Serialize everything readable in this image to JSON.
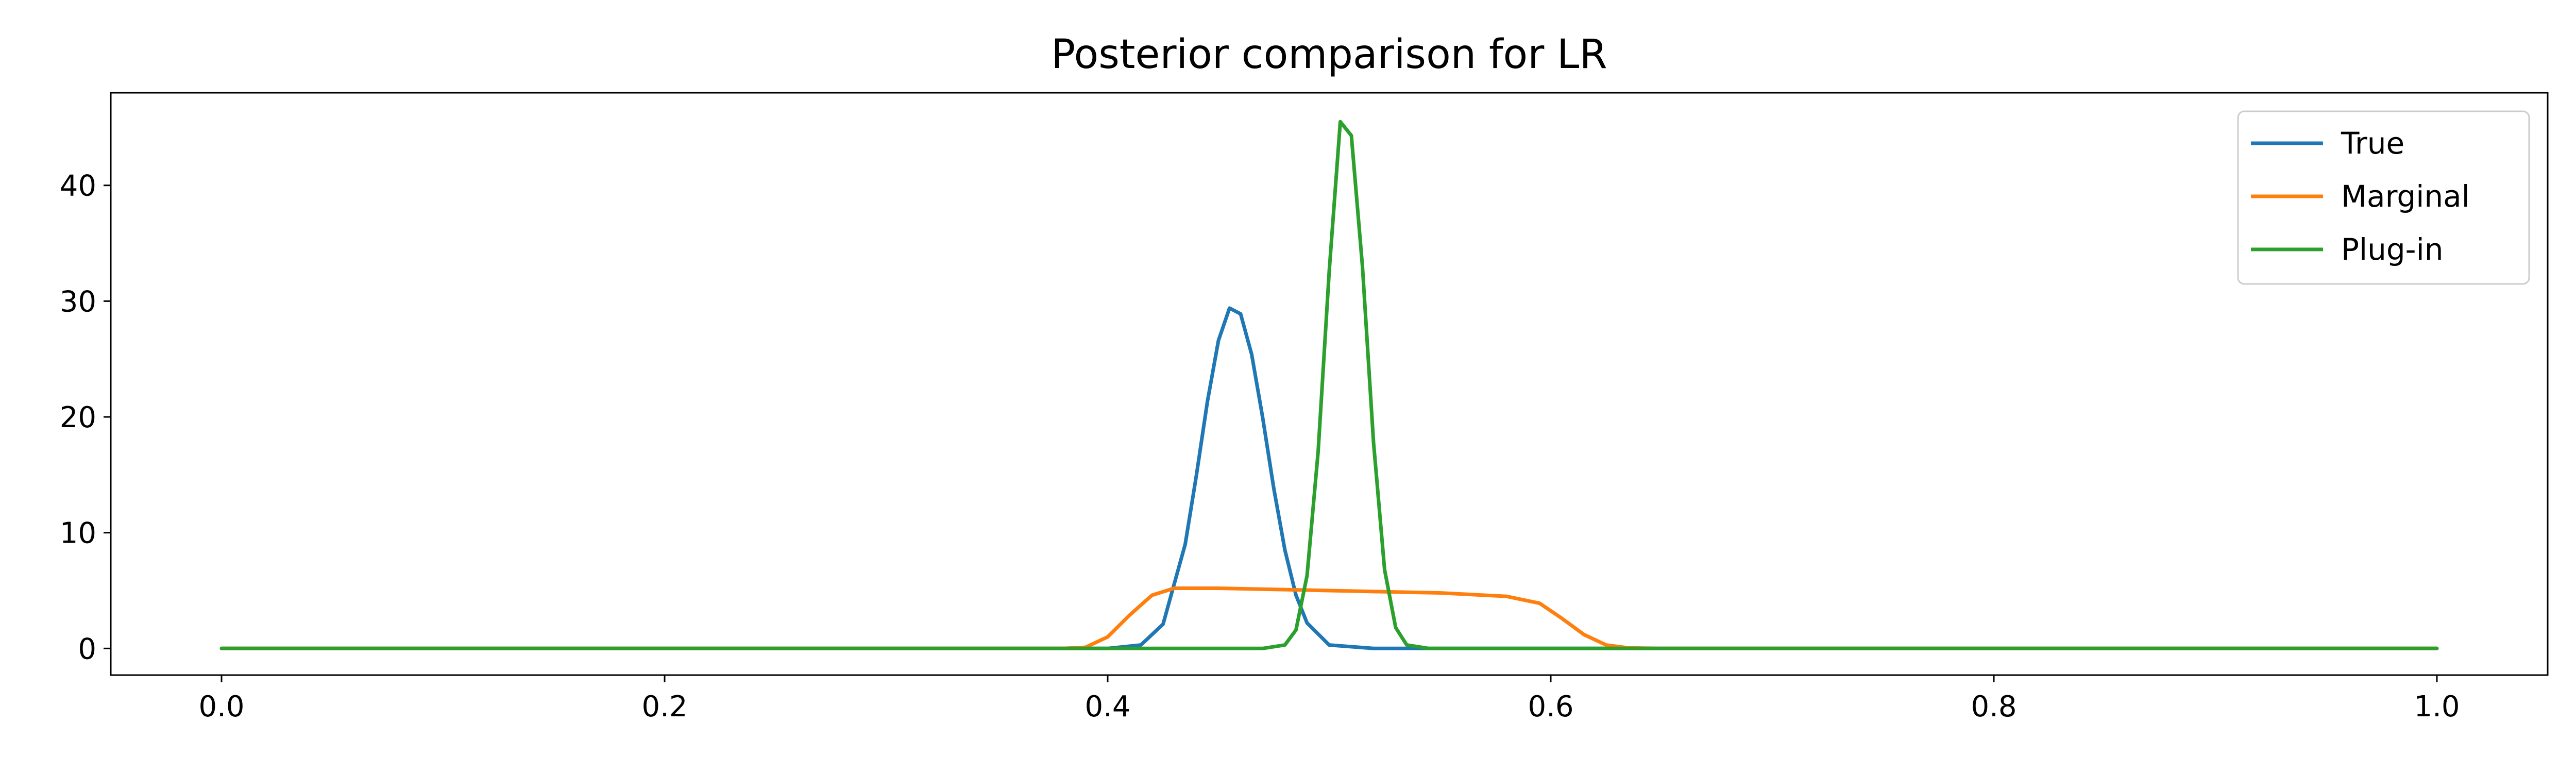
{
  "chart_data": {
    "type": "line",
    "title": "Posterior comparison for LR",
    "xlabel": "",
    "ylabel": "",
    "xlim": [
      -0.05,
      1.05
    ],
    "ylim": [
      -2.3,
      48
    ],
    "xticks": [
      0.0,
      0.2,
      0.4,
      0.6,
      0.8,
      1.0
    ],
    "xtick_labels": [
      "0.0",
      "0.2",
      "0.4",
      "0.6",
      "0.8",
      "1.0"
    ],
    "yticks": [
      0,
      10,
      20,
      30,
      40
    ],
    "ytick_labels": [
      "0",
      "10",
      "20",
      "30",
      "40"
    ],
    "grid": false,
    "legend_position": "top-right",
    "series": [
      {
        "name": "True",
        "color": "#1f77b4",
        "points": [
          [
            0.0,
            0
          ],
          [
            0.4,
            0
          ],
          [
            0.415,
            0.3
          ],
          [
            0.425,
            2.1
          ],
          [
            0.435,
            9.0
          ],
          [
            0.44,
            14.9
          ],
          [
            0.445,
            21.3
          ],
          [
            0.45,
            26.6
          ],
          [
            0.455,
            29.4
          ],
          [
            0.46,
            28.9
          ],
          [
            0.465,
            25.4
          ],
          [
            0.47,
            19.9
          ],
          [
            0.475,
            13.8
          ],
          [
            0.48,
            8.5
          ],
          [
            0.485,
            4.6
          ],
          [
            0.49,
            2.2
          ],
          [
            0.5,
            0.3
          ],
          [
            0.52,
            0
          ],
          [
            1.0,
            0
          ]
        ]
      },
      {
        "name": "Marginal",
        "color": "#ff7f0e",
        "points": [
          [
            0.0,
            0
          ],
          [
            0.38,
            0
          ],
          [
            0.39,
            0.1
          ],
          [
            0.4,
            1.0
          ],
          [
            0.41,
            2.9
          ],
          [
            0.42,
            4.6
          ],
          [
            0.43,
            5.2
          ],
          [
            0.45,
            5.2
          ],
          [
            0.5,
            5.0
          ],
          [
            0.55,
            4.8
          ],
          [
            0.58,
            4.5
          ],
          [
            0.595,
            3.9
          ],
          [
            0.605,
            2.6
          ],
          [
            0.615,
            1.2
          ],
          [
            0.625,
            0.3
          ],
          [
            0.635,
            0.05
          ],
          [
            0.65,
            0
          ],
          [
            1.0,
            0
          ]
        ]
      },
      {
        "name": "Plug-in",
        "color": "#2ca02c",
        "points": [
          [
            0.0,
            0
          ],
          [
            0.47,
            0
          ],
          [
            0.48,
            0.3
          ],
          [
            0.485,
            1.6
          ],
          [
            0.49,
            6.3
          ],
          [
            0.495,
            17.0
          ],
          [
            0.5,
            32.6
          ],
          [
            0.505,
            45.5
          ],
          [
            0.51,
            44.3
          ],
          [
            0.515,
            33.0
          ],
          [
            0.52,
            17.8
          ],
          [
            0.525,
            6.8
          ],
          [
            0.53,
            1.8
          ],
          [
            0.535,
            0.3
          ],
          [
            0.545,
            0
          ],
          [
            1.0,
            0
          ]
        ]
      }
    ]
  }
}
